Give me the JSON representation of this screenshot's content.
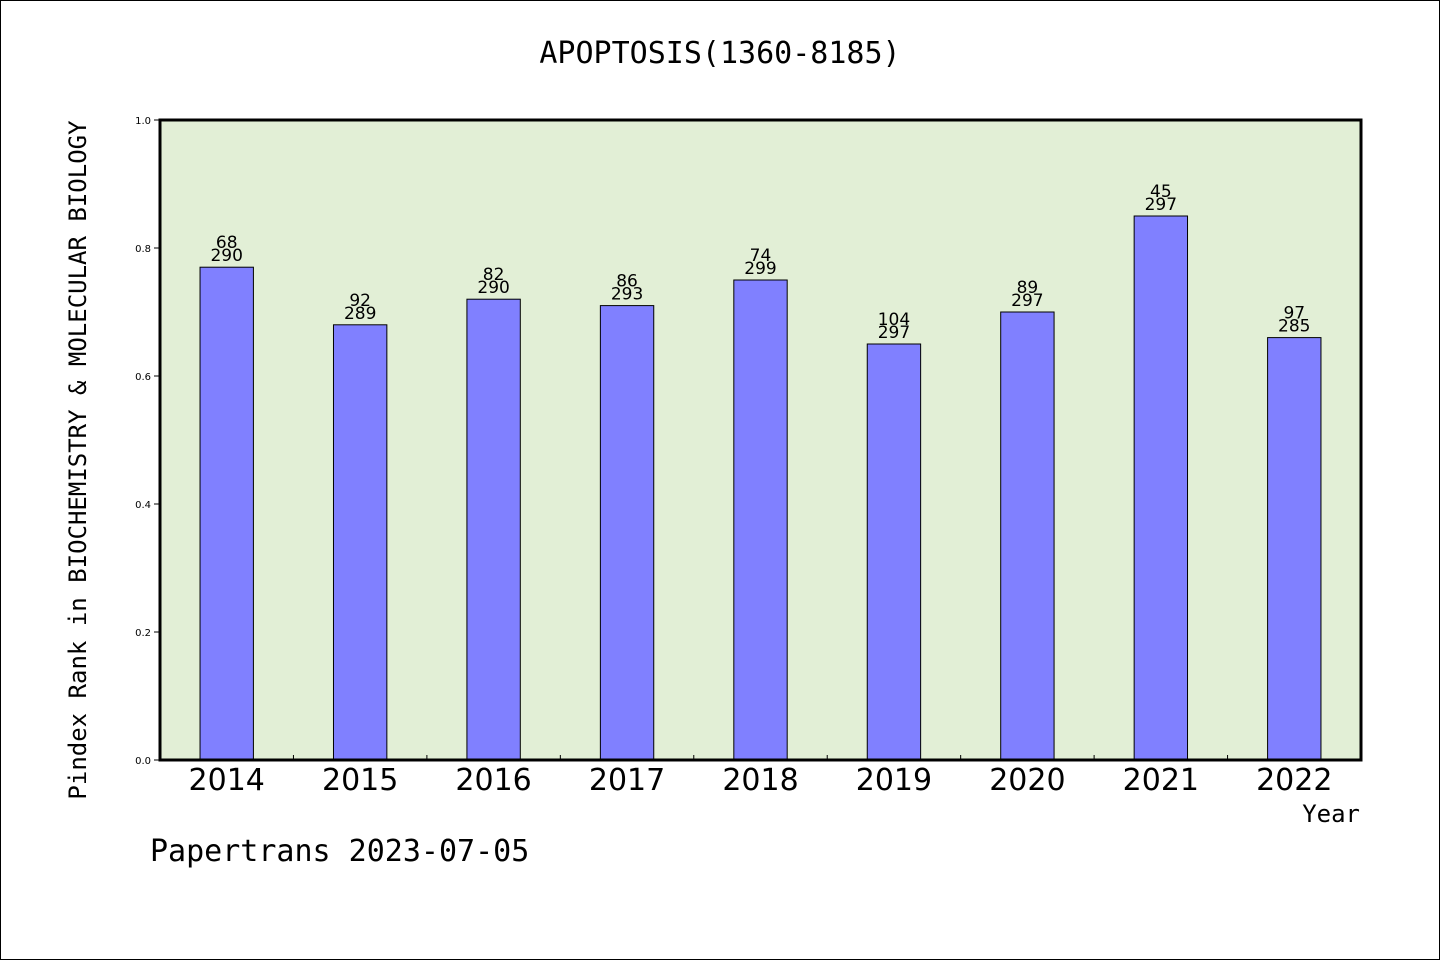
{
  "chart_data": {
    "type": "bar",
    "title": "APOPTOSIS(1360-8185)",
    "ylabel": "Pindex Rank in BIOCHEMISTRY & MOLECULAR BIOLOGY",
    "xlabel": "Year",
    "categories": [
      "2014",
      "2015",
      "2016",
      "2017",
      "2018",
      "2019",
      "2020",
      "2021",
      "2022"
    ],
    "values": [
      0.77,
      0.68,
      0.72,
      0.71,
      0.75,
      0.65,
      0.7,
      0.85,
      0.66
    ],
    "labels_rank": [
      "68",
      "92",
      "82",
      "86",
      "74",
      "104",
      "89",
      "45",
      "97"
    ],
    "labels_total": [
      "290",
      "289",
      "290",
      "293",
      "299",
      "297",
      "297",
      "297",
      "285"
    ],
    "ylim": [
      0,
      1.0
    ],
    "yticks": [
      "0.0",
      "0.2",
      "0.4",
      "0.6",
      "0.8",
      "1.0"
    ],
    "grid": false,
    "colors": {
      "bar": "#8080ff",
      "plot_background": "#e2efd6"
    }
  },
  "footer": "Papertrans 2023-07-05"
}
